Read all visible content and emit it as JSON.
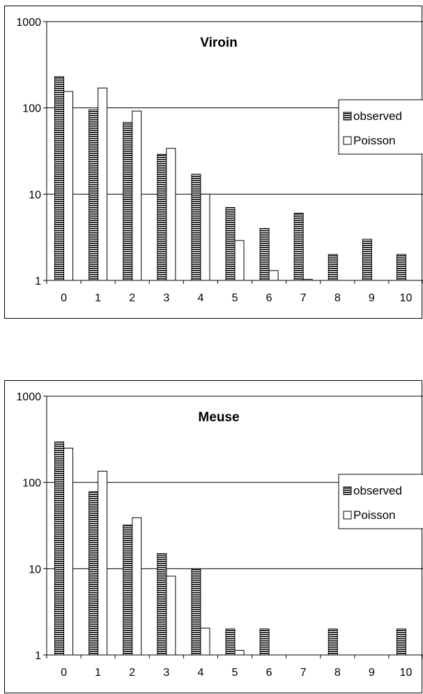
{
  "chart_data": [
    {
      "type": "bar",
      "title": "Viroin",
      "categories": [
        "0",
        "1",
        "2",
        "3",
        "4",
        "5",
        "6",
        "7",
        "8",
        "9",
        "10"
      ],
      "yscale": "log",
      "ylim": [
        1,
        1000
      ],
      "yticks": [
        "1",
        "10",
        "100",
        "1000"
      ],
      "grid": true,
      "legend_position": "right",
      "series": [
        {
          "name": "observed",
          "values": [
            230,
            95,
            68,
            29,
            17,
            7,
            4,
            6,
            2,
            3,
            2
          ],
          "fill": "hatched",
          "color": "#000000"
        },
        {
          "name": "Poisson",
          "values": [
            155,
            170,
            92,
            34,
            10,
            2.9,
            1.3,
            1.03,
            null,
            null,
            null
          ],
          "fill": "white",
          "color": "#000000"
        }
      ]
    },
    {
      "type": "bar",
      "title": "Meuse",
      "categories": [
        "0",
        "1",
        "2",
        "3",
        "4",
        "5",
        "6",
        "7",
        "8",
        "9",
        "10"
      ],
      "yscale": "log",
      "ylim": [
        1,
        1000
      ],
      "yticks": [
        "1",
        "10",
        "100",
        "1000"
      ],
      "grid": true,
      "legend_position": "right",
      "series": [
        {
          "name": "observed",
          "values": [
            295,
            78,
            32,
            15,
            10,
            2,
            2,
            null,
            2,
            null,
            2
          ],
          "fill": "hatched",
          "color": "#000000"
        },
        {
          "name": "Poisson",
          "values": [
            250,
            135,
            39,
            8.2,
            2.05,
            1.13,
            null,
            null,
            null,
            null,
            null
          ],
          "fill": "white",
          "color": "#000000"
        }
      ]
    }
  ]
}
